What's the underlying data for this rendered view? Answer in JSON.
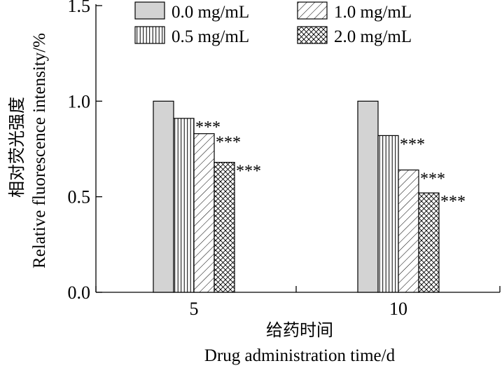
{
  "chart_data": {
    "type": "bar",
    "categories": [
      "5",
      "10"
    ],
    "series": [
      {
        "name": "0.0 mg/mL",
        "values": [
          1.0,
          1.0
        ],
        "pattern": "solid-gray",
        "significance": [
          "",
          ""
        ]
      },
      {
        "name": "0.5 mg/mL",
        "values": [
          0.91,
          0.82
        ],
        "pattern": "vertical-lines",
        "significance": [
          "***",
          "***"
        ]
      },
      {
        "name": "1.0 mg/mL",
        "values": [
          0.83,
          0.64
        ],
        "pattern": "diagonal-lines",
        "significance": [
          "***",
          "***"
        ]
      },
      {
        "name": "2.0 mg/mL",
        "values": [
          0.68,
          0.52
        ],
        "pattern": "crosshatch",
        "significance": [
          "***",
          "***"
        ]
      }
    ],
    "xlabel_cn": "给药时间",
    "xlabel": "Drug administration time/d",
    "ylabel_cn": "相对荧光强度",
    "ylabel": "Relative fluorescence intensity/%",
    "ylim": [
      0.0,
      1.5
    ],
    "yticks": [
      "0.0",
      "0.5",
      "1.0",
      "1.5"
    ],
    "grid": false,
    "legend_position": "top",
    "colors": {
      "solid_fill": "#d3d3d3",
      "line": "#000000",
      "background": "#ffffff"
    }
  }
}
